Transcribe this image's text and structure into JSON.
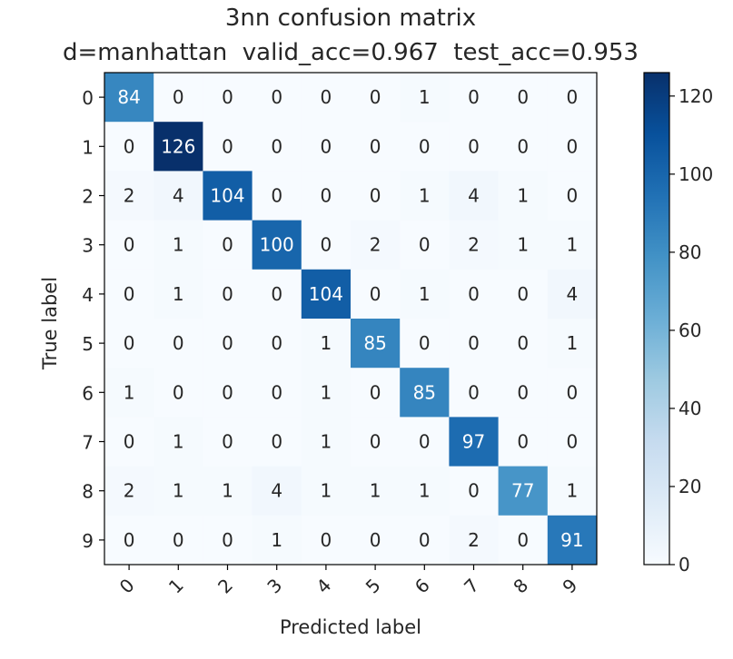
{
  "chart_data": {
    "type": "heatmap",
    "title": "3nn confusion matrix",
    "subtitle": "d=manhattan  valid_acc=0.967  test_acc=0.953",
    "xlabel": "Predicted label",
    "ylabel": "True label",
    "x_categories": [
      "0",
      "1",
      "2",
      "3",
      "4",
      "5",
      "6",
      "7",
      "8",
      "9"
    ],
    "y_categories": [
      "0",
      "1",
      "2",
      "3",
      "4",
      "5",
      "6",
      "7",
      "8",
      "9"
    ],
    "values": [
      [
        84,
        0,
        0,
        0,
        0,
        0,
        1,
        0,
        0,
        0
      ],
      [
        0,
        126,
        0,
        0,
        0,
        0,
        0,
        0,
        0,
        0
      ],
      [
        2,
        4,
        104,
        0,
        0,
        0,
        1,
        4,
        1,
        0
      ],
      [
        0,
        1,
        0,
        100,
        0,
        2,
        0,
        2,
        1,
        1
      ],
      [
        0,
        1,
        0,
        0,
        104,
        0,
        1,
        0,
        0,
        4
      ],
      [
        0,
        0,
        0,
        0,
        1,
        85,
        0,
        0,
        0,
        1
      ],
      [
        1,
        0,
        0,
        0,
        1,
        0,
        85,
        0,
        0,
        0
      ],
      [
        0,
        1,
        0,
        0,
        1,
        0,
        0,
        97,
        0,
        0
      ],
      [
        2,
        1,
        1,
        4,
        1,
        1,
        1,
        0,
        77,
        1
      ],
      [
        0,
        0,
        0,
        1,
        0,
        0,
        0,
        2,
        0,
        91
      ]
    ],
    "colormap": "Blues",
    "colorbar": {
      "ticks": [
        0,
        20,
        40,
        60,
        80,
        100,
        120
      ],
      "range": [
        0,
        126
      ]
    },
    "grid": false
  }
}
